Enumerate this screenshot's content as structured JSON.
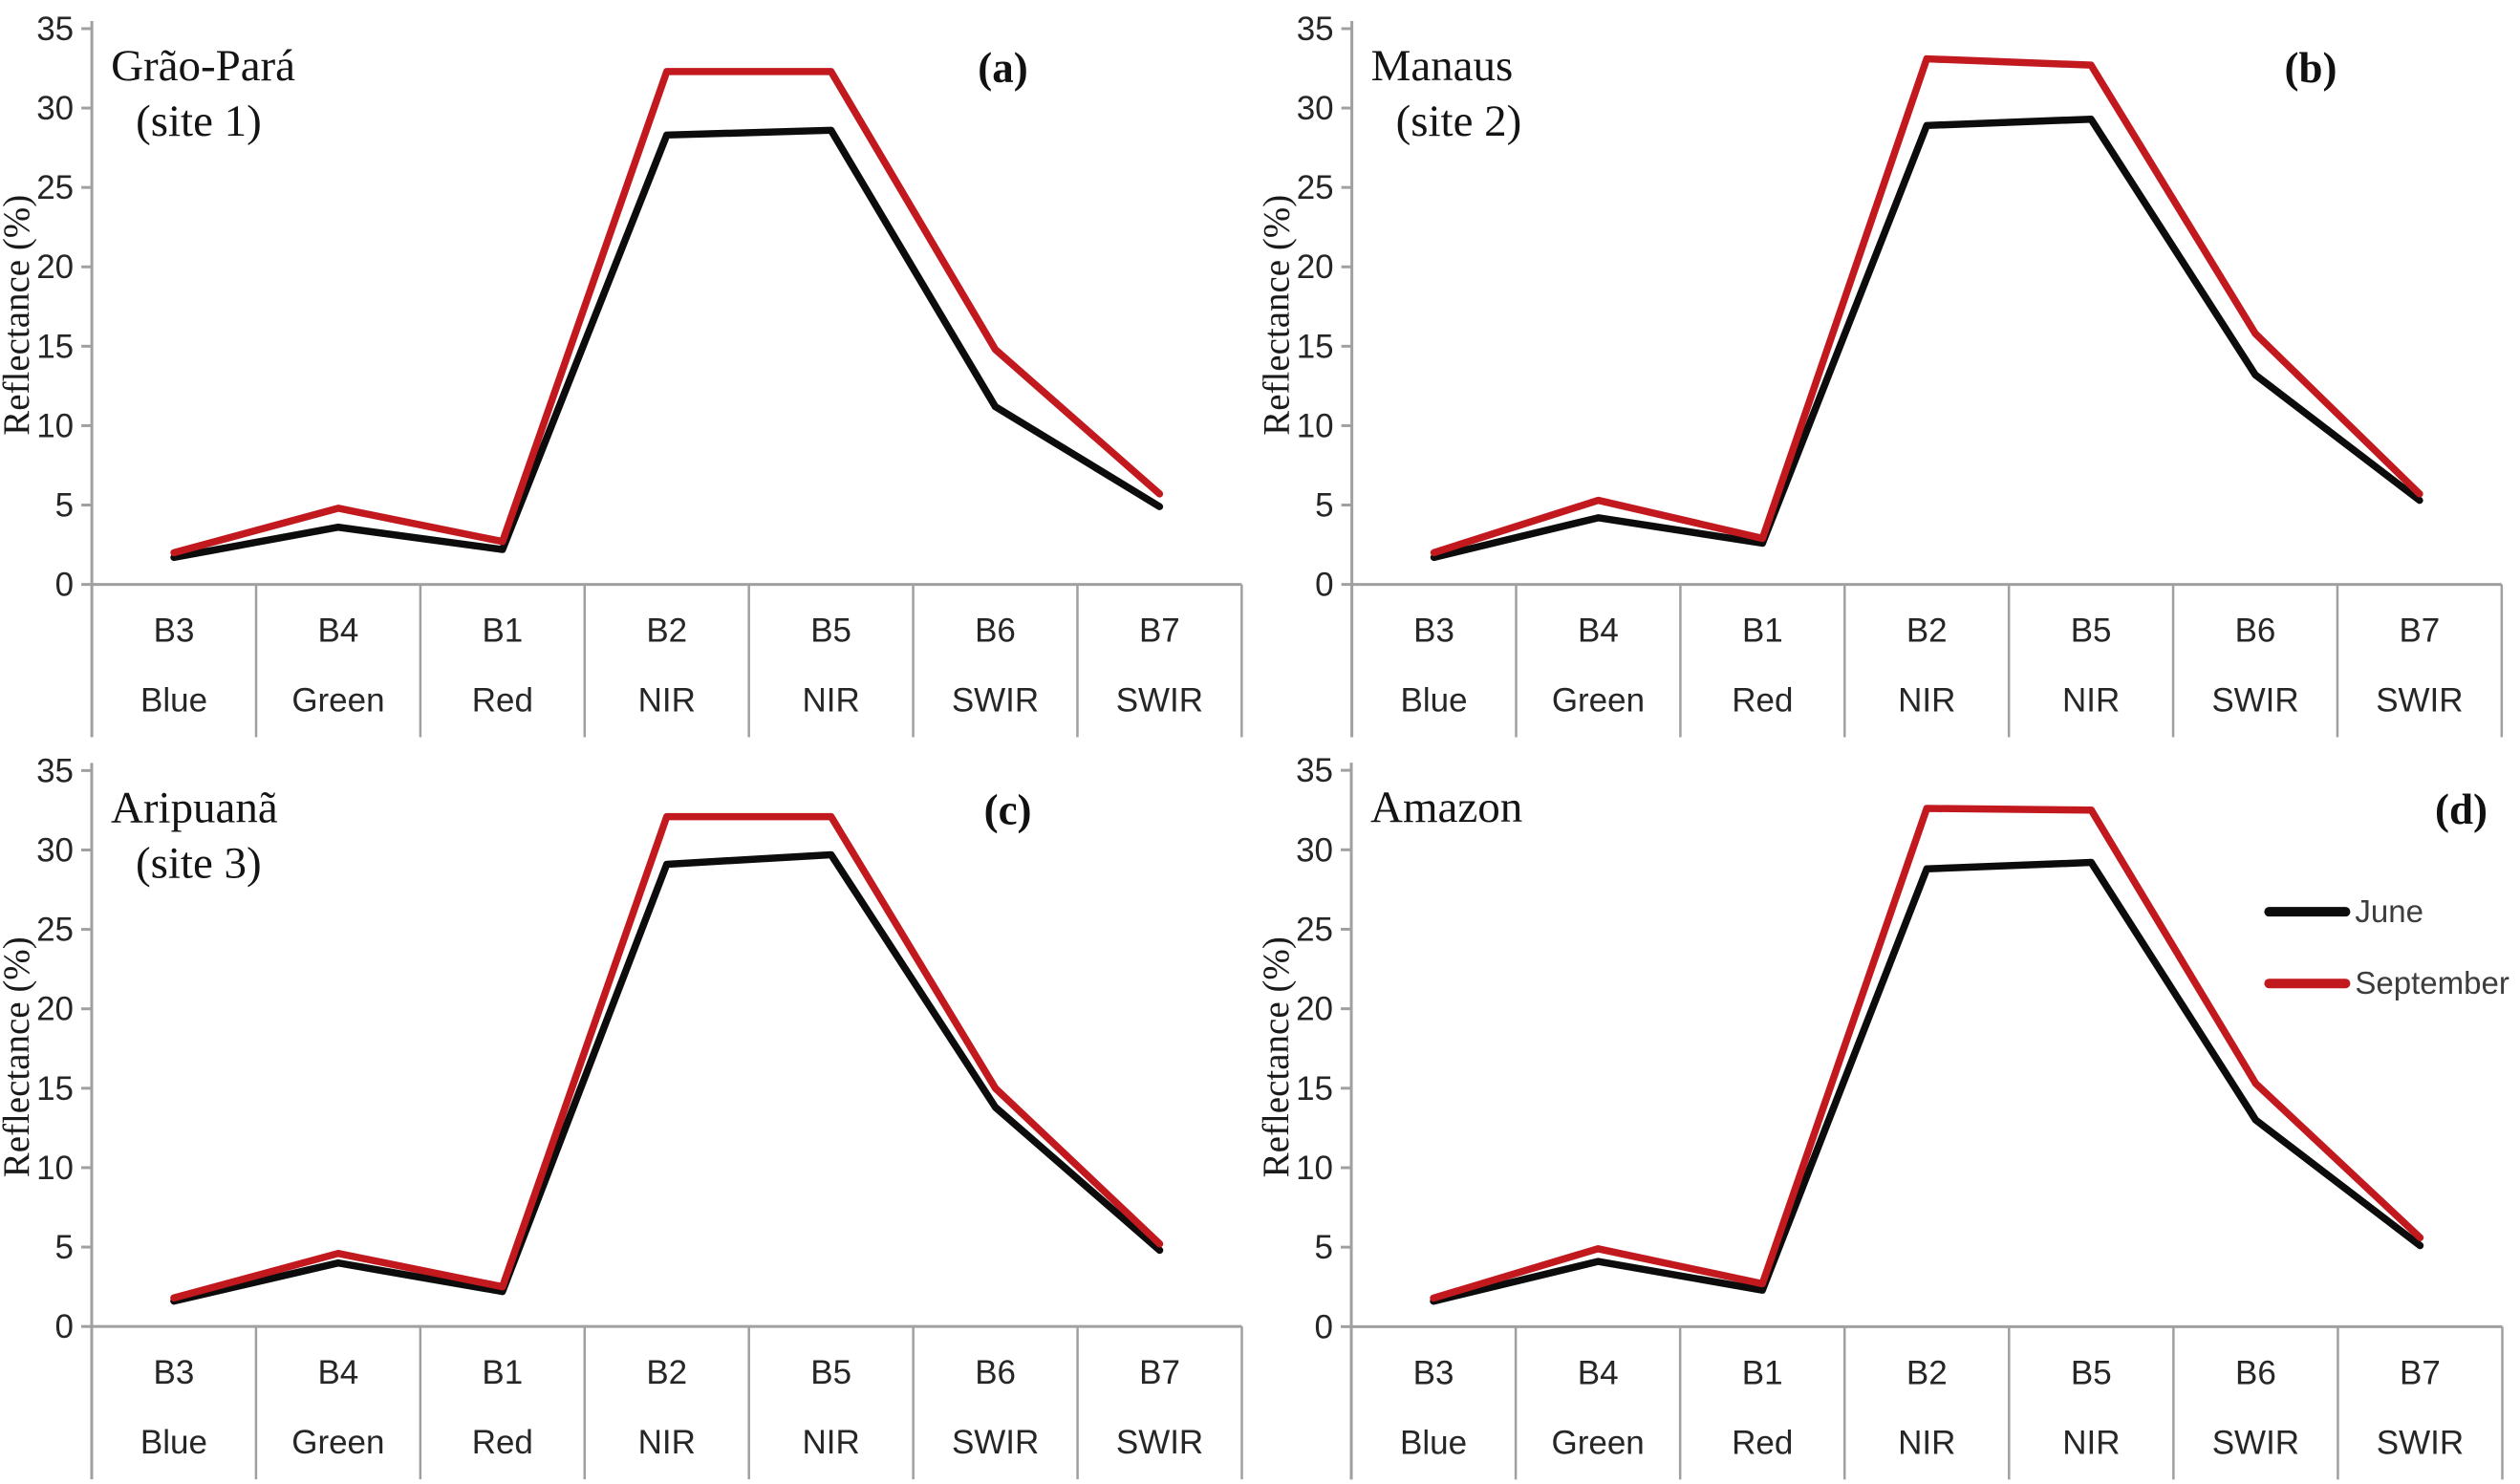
{
  "figure": {
    "ylabel": "Reflectance (%)",
    "axis_color": "#a0a0a0",
    "text_color": "#262626",
    "legend": {
      "position": "right-middle-of-panel-d",
      "entries": [
        {
          "label": "June",
          "color": "#0c0c0c"
        },
        {
          "label": "September",
          "color": "#c2191f"
        }
      ]
    }
  },
  "chart_data": [
    {
      "type": "line",
      "panel_label": "(a)",
      "title": "Grão-Pará",
      "subtitle": "(site 1)",
      "ylabel": "Reflectance (%)",
      "ylim": [
        0,
        35
      ],
      "yticks": [
        0,
        5,
        10,
        15,
        20,
        25,
        30,
        35
      ],
      "grid": false,
      "categories": [
        "B3",
        "B4",
        "B1",
        "B2",
        "B5",
        "B6",
        "B7"
      ],
      "category_names": [
        "Blue",
        "Green",
        "Red",
        "NIR",
        "NIR",
        "SWIR",
        "SWIR"
      ],
      "series": [
        {
          "name": "June",
          "color": "#0c0c0c",
          "values": [
            1.7,
            3.6,
            2.2,
            28.3,
            28.6,
            11.2,
            4.9
          ]
        },
        {
          "name": "September",
          "color": "#c2191f",
          "values": [
            2.0,
            4.8,
            2.7,
            32.3,
            32.3,
            14.8,
            5.7
          ]
        }
      ],
      "show_legend": false
    },
    {
      "type": "line",
      "panel_label": "(b)",
      "title": "Manaus",
      "subtitle": "(site 2)",
      "ylabel": "Reflectance (%)",
      "ylim": [
        0,
        35
      ],
      "yticks": [
        0,
        5,
        10,
        15,
        20,
        25,
        30,
        35
      ],
      "grid": false,
      "categories": [
        "B3",
        "B4",
        "B1",
        "B2",
        "B5",
        "B6",
        "B7"
      ],
      "category_names": [
        "Blue",
        "Green",
        "Red",
        "NIR",
        "NIR",
        "SWIR",
        "SWIR"
      ],
      "series": [
        {
          "name": "June",
          "color": "#0c0c0c",
          "values": [
            1.7,
            4.2,
            2.6,
            28.9,
            29.3,
            13.2,
            5.3
          ]
        },
        {
          "name": "September",
          "color": "#c2191f",
          "values": [
            2.0,
            5.3,
            2.9,
            33.1,
            32.7,
            15.8,
            5.7
          ]
        }
      ],
      "show_legend": false
    },
    {
      "type": "line",
      "panel_label": "(c)",
      "title": "Aripuanã",
      "subtitle": "(site 3)",
      "ylabel": "Reflectance (%)",
      "ylim": [
        0,
        35
      ],
      "yticks": [
        0,
        5,
        10,
        15,
        20,
        25,
        30,
        35
      ],
      "grid": false,
      "categories": [
        "B3",
        "B4",
        "B1",
        "B2",
        "B5",
        "B6",
        "B7"
      ],
      "category_names": [
        "Blue",
        "Green",
        "Red",
        "NIR",
        "NIR",
        "SWIR",
        "SWIR"
      ],
      "series": [
        {
          "name": "June",
          "color": "#0c0c0c",
          "values": [
            1.6,
            4.0,
            2.2,
            29.1,
            29.7,
            13.8,
            4.8
          ]
        },
        {
          "name": "September",
          "color": "#c2191f",
          "values": [
            1.8,
            4.6,
            2.5,
            32.1,
            32.1,
            15.0,
            5.2
          ]
        }
      ],
      "show_legend": false
    },
    {
      "type": "line",
      "panel_label": "(d)",
      "title": "Amazon",
      "subtitle": "",
      "ylabel": "Reflectance (%)",
      "ylim": [
        0,
        35
      ],
      "yticks": [
        0,
        5,
        10,
        15,
        20,
        25,
        30,
        35
      ],
      "grid": false,
      "categories": [
        "B3",
        "B4",
        "B1",
        "B2",
        "B5",
        "B6",
        "B7"
      ],
      "category_names": [
        "Blue",
        "Green",
        "Red",
        "NIR",
        "NIR",
        "SWIR",
        "SWIR"
      ],
      "series": [
        {
          "name": "June",
          "color": "#0c0c0c",
          "values": [
            1.6,
            4.1,
            2.3,
            28.8,
            29.2,
            13.0,
            5.1
          ]
        },
        {
          "name": "September",
          "color": "#c2191f",
          "values": [
            1.8,
            4.9,
            2.7,
            32.6,
            32.5,
            15.3,
            5.6
          ]
        }
      ],
      "show_legend": true
    }
  ]
}
